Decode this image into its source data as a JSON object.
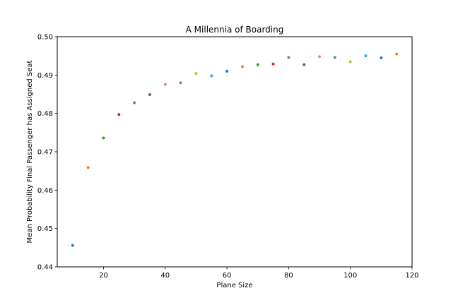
{
  "chart_data": {
    "type": "scatter",
    "title": "A Millennia of Boarding",
    "xlabel": "Plane Size",
    "ylabel": "Mean Probability Final Passenger has Assigned Seat",
    "xlim": [
      5,
      120
    ],
    "ylim": [
      0.44,
      0.5
    ],
    "xticks": [
      20,
      40,
      60,
      80,
      100,
      120
    ],
    "yticks": [
      0.44,
      0.45,
      0.46,
      0.47,
      0.48,
      0.49,
      0.5
    ],
    "ytick_labels": [
      "0.44",
      "0.45",
      "0.46",
      "0.47",
      "0.48",
      "0.49",
      "0.50"
    ],
    "grid": false,
    "points": [
      {
        "x": 10,
        "y": 0.4456,
        "color": "#1f77b4"
      },
      {
        "x": 15,
        "y": 0.4659,
        "color": "#ff7f0e"
      },
      {
        "x": 20,
        "y": 0.4736,
        "color": "#2ca02c"
      },
      {
        "x": 25,
        "y": 0.4797,
        "color": "#d62728"
      },
      {
        "x": 30,
        "y": 0.4828,
        "color": "#9467bd"
      },
      {
        "x": 35,
        "y": 0.4849,
        "color": "#8c564b"
      },
      {
        "x": 40,
        "y": 0.4876,
        "color": "#e377c2"
      },
      {
        "x": 45,
        "y": 0.488,
        "color": "#7f7f7f"
      },
      {
        "x": 50,
        "y": 0.4904,
        "color": "#bcbd22"
      },
      {
        "x": 55,
        "y": 0.4898,
        "color": "#17becf"
      },
      {
        "x": 60,
        "y": 0.491,
        "color": "#1f77b4"
      },
      {
        "x": 65,
        "y": 0.4922,
        "color": "#ff7f0e"
      },
      {
        "x": 70,
        "y": 0.4927,
        "color": "#2ca02c"
      },
      {
        "x": 75,
        "y": 0.4929,
        "color": "#d62728"
      },
      {
        "x": 80,
        "y": 0.4946,
        "color": "#9467bd"
      },
      {
        "x": 85,
        "y": 0.4927,
        "color": "#8c564b"
      },
      {
        "x": 90,
        "y": 0.4948,
        "color": "#e377c2"
      },
      {
        "x": 95,
        "y": 0.4946,
        "color": "#7f7f7f"
      },
      {
        "x": 100,
        "y": 0.4935,
        "color": "#bcbd22"
      },
      {
        "x": 105,
        "y": 0.495,
        "color": "#17becf"
      },
      {
        "x": 110,
        "y": 0.4945,
        "color": "#1f77b4"
      },
      {
        "x": 115,
        "y": 0.4955,
        "color": "#ff7f0e"
      }
    ]
  }
}
